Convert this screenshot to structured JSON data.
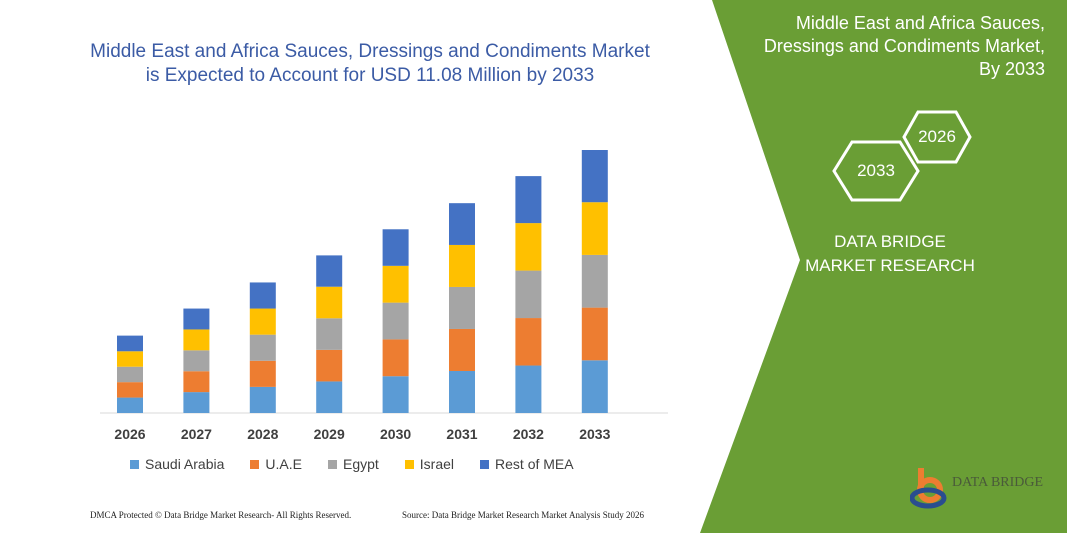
{
  "title": "Middle East and Africa Sauces, Dressings and Condiments Market is Expected to Account for USD 11.08 Million by 2033",
  "side_panel": {
    "title": "Middle East and Africa Sauces, Dressings and Condiments Market, By 2033",
    "hex_labels": [
      "2026",
      "2033"
    ],
    "brand": "DATA BRIDGE MARKET RESEARCH",
    "color": "#6a9e35"
  },
  "logo": {
    "text": "DATA BRIDGE"
  },
  "footer": {
    "left": "DMCA Protected © Data Bridge Market Research-  All Rights Reserved.",
    "right": "Source: Data Bridge Market Research  Market Analysis Study 2026"
  },
  "chart_data": {
    "type": "bar",
    "stacked": true,
    "title": "",
    "xlabel": "",
    "ylabel": "",
    "grid": false,
    "legend_position": "bottom",
    "ylim": [
      0,
      11.08
    ],
    "categories": [
      "2026",
      "2027",
      "2028",
      "2029",
      "2030",
      "2031",
      "2032",
      "2033"
    ],
    "series": [
      {
        "name": "Saudi Arabia",
        "color": "#5b9bd5",
        "values": [
          0.65,
          0.88,
          1.1,
          1.33,
          1.55,
          1.77,
          2.0,
          2.22
        ]
      },
      {
        "name": "U.A.E",
        "color": "#ed7d31",
        "values": [
          0.65,
          0.88,
          1.1,
          1.33,
          1.55,
          1.77,
          2.0,
          2.22
        ]
      },
      {
        "name": "Egypt",
        "color": "#a5a5a5",
        "values": [
          0.65,
          0.88,
          1.1,
          1.33,
          1.55,
          1.77,
          2.0,
          2.22
        ]
      },
      {
        "name": "Israel",
        "color": "#ffc000",
        "values": [
          0.65,
          0.88,
          1.1,
          1.33,
          1.55,
          1.77,
          2.0,
          2.22
        ]
      },
      {
        "name": "Rest of MEA",
        "color": "#4472c4",
        "values": [
          0.66,
          0.88,
          1.1,
          1.32,
          1.54,
          1.76,
          1.98,
          2.2
        ]
      }
    ]
  }
}
